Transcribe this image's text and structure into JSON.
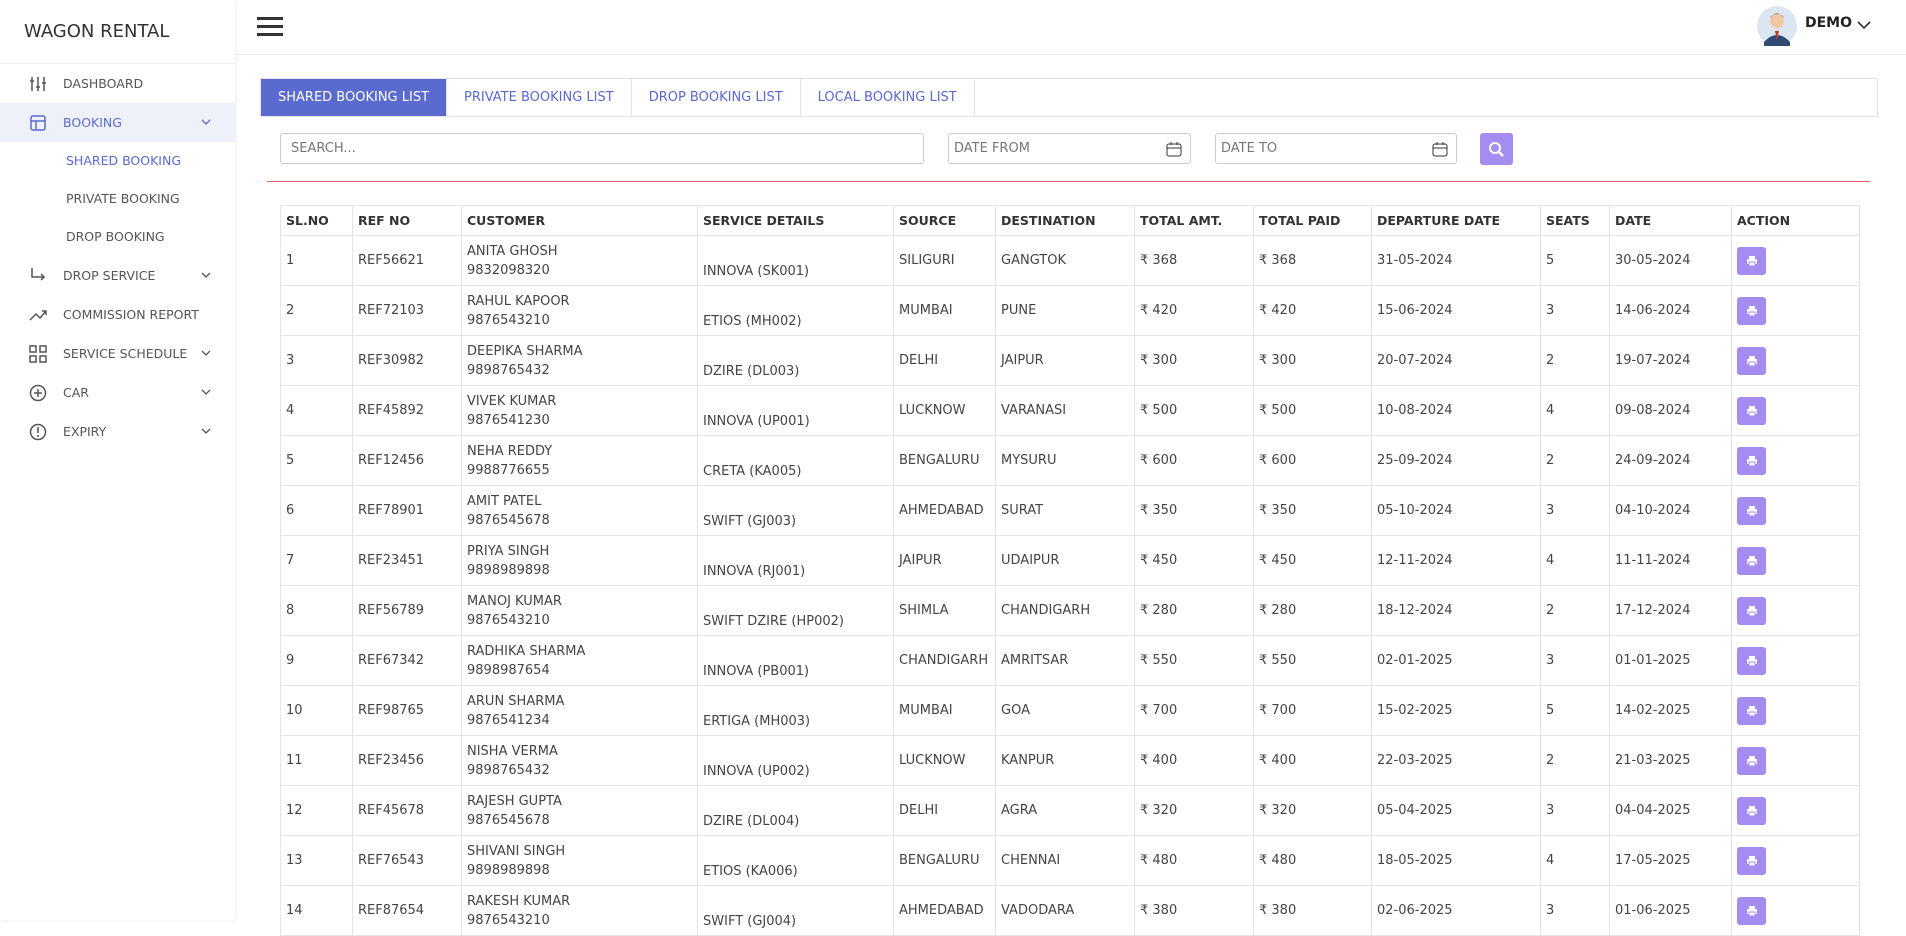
{
  "brand": "WAGON RENTAL",
  "user": {
    "name": "DEMO"
  },
  "menu": [
    {
      "label": "DASHBOARD"
    },
    {
      "label": "BOOKING",
      "active": true,
      "children": [
        "SHARED BOOKING",
        "PRIVATE BOOKING",
        "DROP BOOKING"
      ]
    },
    {
      "label": "DROP SERVICE"
    },
    {
      "label": "COMMISSION REPORT"
    },
    {
      "label": "SERVICE SCHEDULE"
    },
    {
      "label": "CAR"
    },
    {
      "label": "EXPIRY"
    }
  ],
  "tabs": [
    "SHARED BOOKING LIST",
    "PRIVATE BOOKING LIST",
    "DROP BOOKING LIST",
    "LOCAL BOOKING LIST"
  ],
  "filters": {
    "search": "SEARCH...",
    "date_from": "DATE FROM",
    "date_to": "DATE TO"
  },
  "table": {
    "headers": [
      "SL.NO",
      "REF NO",
      "CUSTOMER",
      "SERVICE DETAILS",
      "SOURCE",
      "DESTINATION",
      "TOTAL AMT.",
      "TOTAL PAID",
      "DEPARTURE DATE",
      "SEATS",
      "DATE",
      "ACTION"
    ],
    "rows": [
      [
        "1",
        "REF56621",
        "ANITA GHOSH",
        "9832098320",
        "INNOVA (SK001)",
        "SILIGURI",
        "GANGTOK",
        "₹ 368",
        "₹ 368",
        "31-05-2024",
        "5",
        "30-05-2024"
      ],
      [
        "2",
        "REF72103",
        "RAHUL KAPOOR",
        "9876543210",
        "ETIOS (MH002)",
        "MUMBAI",
        "PUNE",
        "₹ 420",
        "₹ 420",
        "15-06-2024",
        "3",
        "14-06-2024"
      ],
      [
        "3",
        "REF30982",
        "DEEPIKA SHARMA",
        "9898765432",
        "DZIRE (DL003)",
        "DELHI",
        "JAIPUR",
        "₹ 300",
        "₹ 300",
        "20-07-2024",
        "2",
        "19-07-2024"
      ],
      [
        "4",
        "REF45892",
        "VIVEK KUMAR",
        "9876541230",
        "INNOVA (UP001)",
        "LUCKNOW",
        "VARANASI",
        "₹ 500",
        "₹ 500",
        "10-08-2024",
        "4",
        "09-08-2024"
      ],
      [
        "5",
        "REF12456",
        "NEHA REDDY",
        "9988776655",
        "CRETA (KA005)",
        "BENGALURU",
        "MYSURU",
        "₹ 600",
        "₹ 600",
        "25-09-2024",
        "2",
        "24-09-2024"
      ],
      [
        "6",
        "REF78901",
        "AMIT PATEL",
        "9876545678",
        "SWIFT (GJ003)",
        "AHMEDABAD",
        "SURAT",
        "₹ 350",
        "₹ 350",
        "05-10-2024",
        "3",
        "04-10-2024"
      ],
      [
        "7",
        "REF23451",
        "PRIYA SINGH",
        "9898989898",
        "INNOVA (RJ001)",
        "JAIPUR",
        "UDAIPUR",
        "₹ 450",
        "₹ 450",
        "12-11-2024",
        "4",
        "11-11-2024"
      ],
      [
        "8",
        "REF56789",
        "MANOJ KUMAR",
        "9876543210",
        "SWIFT DZIRE (HP002)",
        "SHIMLA",
        "CHANDIGARH",
        "₹ 280",
        "₹ 280",
        "18-12-2024",
        "2",
        "17-12-2024"
      ],
      [
        "9",
        "REF67342",
        "RADHIKA SHARMA",
        "9898987654",
        "INNOVA (PB001)",
        "CHANDIGARH",
        "AMRITSAR",
        "₹ 550",
        "₹ 550",
        "02-01-2025",
        "3",
        "01-01-2025"
      ],
      [
        "10",
        "REF98765",
        "ARUN SHARMA",
        "9876541234",
        "ERTIGA (MH003)",
        "MUMBAI",
        "GOA",
        "₹ 700",
        "₹ 700",
        "15-02-2025",
        "5",
        "14-02-2025"
      ],
      [
        "11",
        "REF23456",
        "NISHA VERMA",
        "9898765432",
        "INNOVA (UP002)",
        "LUCKNOW",
        "KANPUR",
        "₹ 400",
        "₹ 400",
        "22-03-2025",
        "2",
        "21-03-2025"
      ],
      [
        "12",
        "REF45678",
        "RAJESH GUPTA",
        "9876545678",
        "DZIRE (DL004)",
        "DELHI",
        "AGRA",
        "₹ 320",
        "₹ 320",
        "05-04-2025",
        "3",
        "04-04-2025"
      ],
      [
        "13",
        "REF76543",
        "SHIVANI SINGH",
        "9898989898",
        "ETIOS (KA006)",
        "BENGALURU",
        "CHENNAI",
        "₹ 480",
        "₹ 480",
        "18-05-2025",
        "4",
        "17-05-2025"
      ],
      [
        "14",
        "REF87654",
        "RAKESH KUMAR",
        "9876543210",
        "SWIFT (GJ004)",
        "AHMEDABAD",
        "VADODARA",
        "₹ 380",
        "₹ 380",
        "02-06-2025",
        "3",
        "01-06-2025"
      ]
    ]
  }
}
